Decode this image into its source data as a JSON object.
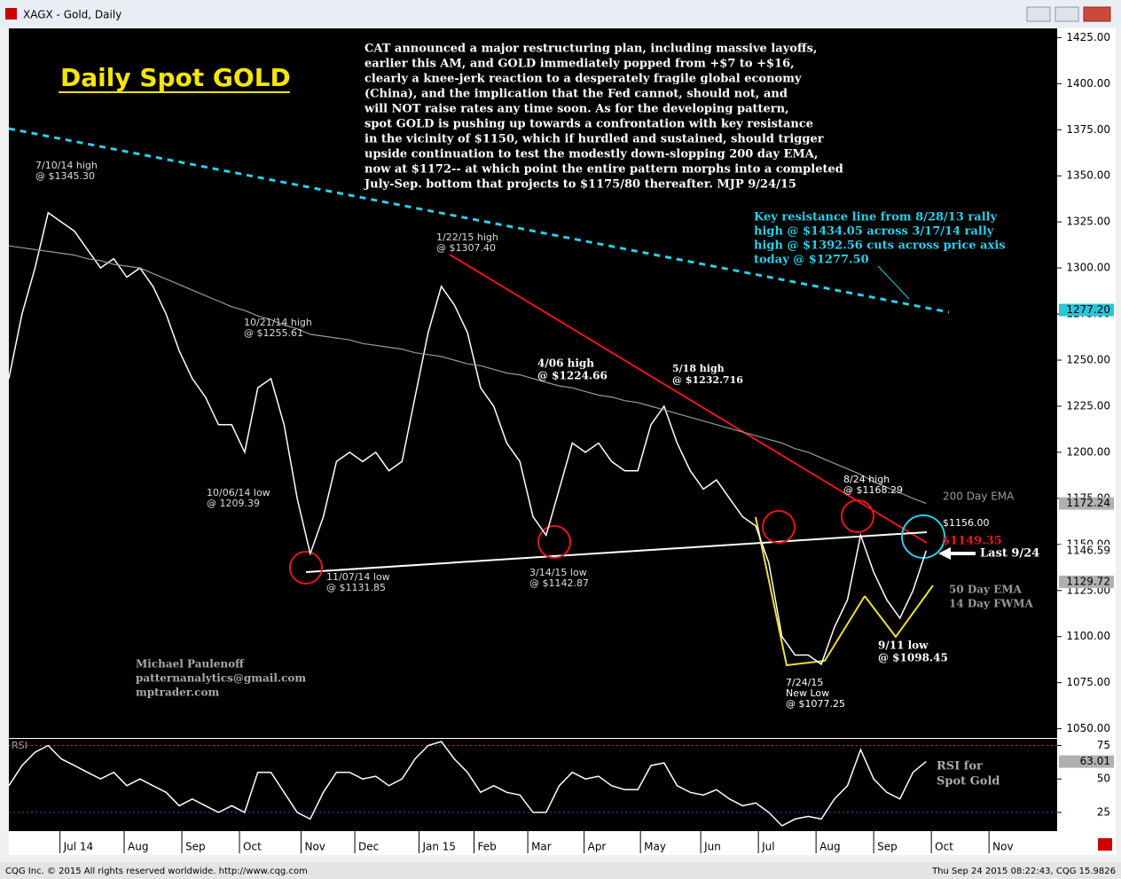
{
  "window": {
    "title": "XAGX - Gold, Daily"
  },
  "chart_data": [
    {
      "type": "line",
      "title": "Daily Spot GOLD",
      "x": [
        0,
        1,
        2,
        3,
        4,
        5,
        6,
        7,
        8,
        9,
        10,
        11,
        12,
        13,
        14,
        15,
        16,
        17,
        18,
        19,
        20,
        21,
        22,
        23,
        24,
        25,
        26,
        27,
        28,
        29,
        30,
        31,
        32,
        33,
        34,
        35,
        36,
        37,
        38,
        39,
        40,
        41,
        42,
        43,
        44,
        45,
        46,
        47,
        48,
        49,
        50,
        51,
        52,
        53,
        54,
        55,
        56,
        57,
        58,
        59,
        60,
        61,
        62,
        63,
        64,
        65,
        66,
        67,
        68,
        69,
        70
      ],
      "xlim": [
        0,
        80
      ],
      "series": [
        {
          "color": "#ffffff",
          "values": [
            1240,
            1275,
            1300,
            1330,
            1325,
            1320,
            1310,
            1300,
            1305,
            1295,
            1300,
            1290,
            1275,
            1255,
            1240,
            1230,
            1215,
            1215,
            1200,
            1235,
            1240,
            1215,
            1175,
            1145,
            1165,
            1195,
            1200,
            1195,
            1200,
            1190,
            1195,
            1230,
            1265,
            1290,
            1280,
            1265,
            1235,
            1225,
            1205,
            1195,
            1165,
            1155,
            1180,
            1205,
            1200,
            1205,
            1195,
            1190,
            1190,
            1215,
            1225,
            1205,
            1190,
            1180,
            1185,
            1175,
            1165,
            1160,
            1140,
            1100,
            1090,
            1090,
            1085,
            1105,
            1120,
            1155,
            1135,
            1120,
            1110,
            1125,
            1146.59
          ]
        },
        {
          "name": "200 Day EMA",
          "color": "#9a9a9a",
          "values": [
            1312,
            1311,
            1310,
            1309,
            1308,
            1307,
            1305,
            1304,
            1302,
            1301,
            1300,
            1297,
            1294,
            1291,
            1288,
            1285,
            1282,
            1279,
            1277,
            1274,
            1272,
            1269,
            1267,
            1264,
            1263,
            1262,
            1261,
            1259,
            1258,
            1257,
            1256,
            1254,
            1253,
            1252,
            1250,
            1248,
            1247,
            1245,
            1243,
            1242,
            1240,
            1238,
            1236,
            1235,
            1233,
            1231,
            1230,
            1228,
            1227,
            1225,
            1223,
            1221,
            1219,
            1217,
            1215,
            1213,
            1211,
            1209,
            1207,
            1205,
            1202,
            1200,
            1197,
            1194,
            1191,
            1188,
            1184,
            1181,
            1178,
            1175,
            1172.24
          ]
        }
      ],
      "ylim": [
        1045,
        1430
      ],
      "yticks": [
        {
          "value": 1050,
          "label": "1050.00"
        },
        {
          "value": 1075,
          "label": "1075.00"
        },
        {
          "value": 1100,
          "label": "1100.00"
        },
        {
          "value": 1125,
          "label": "1125.00"
        },
        {
          "value": 1150,
          "label": "1150.00"
        },
        {
          "value": 1175,
          "label": "1175.00"
        },
        {
          "value": 1200,
          "label": "1200.00"
        },
        {
          "value": 1225,
          "label": "1225.00"
        },
        {
          "value": 1250,
          "label": "1250.00"
        },
        {
          "value": 1275,
          "label": "1275.00"
        },
        {
          "value": 1300,
          "label": "1300.00"
        },
        {
          "value": 1325,
          "label": "1325.00"
        },
        {
          "value": 1350,
          "label": "1350.00"
        },
        {
          "value": 1375,
          "label": "1375.00"
        },
        {
          "value": 1400,
          "label": "1400.00"
        },
        {
          "value": 1425,
          "label": "1425.00"
        }
      ],
      "axis_markers": [
        {
          "value": 1277.2,
          "label": "1277.20",
          "color": "#29c5d8"
        },
        {
          "value": 1172.24,
          "label": "1172.24",
          "color": "#b0b0b0"
        },
        {
          "value": 1146.59,
          "label": "1146.59",
          "color": "#ffffff"
        },
        {
          "value": 1129.72,
          "label": "1129.72",
          "color": "#b0b0b0"
        }
      ],
      "annotations": [
        {
          "lines": [
            "CAT announced a major restructuring plan, including massive layoffs,",
            "earlier this AM, and GOLD immediately popped from +$7 to +$16,",
            "clearly a knee-jerk reaction to a desperately fragile global economy",
            "(China), and the implication that the Fed cannot, should not, and",
            "will NOT raise rates any time soon. As for the developing pattern,",
            "spot GOLD is pushing up towards a confrontation with key resistance",
            "in the vicinity of $1150, which if hurdled and sustained, should trigger",
            "upside continuation to test the modestly down-slopping 200 day EMA,",
            "now at $1172-- at which point the entire pattern morphs into a completed",
            "July-Sep. bottom that projects to $1175/80 thereafter.  MJP  9/24/15"
          ]
        },
        {
          "lines": [
            "Key resistance line from 8/28/13 rally",
            "high @ $1434.05 across 3/17/14 rally",
            "high @ $1392.56 cuts across price axis",
            "today @ $1277.50"
          ]
        },
        {
          "lines": [
            "7/10/14 high",
            "@ $1345.30"
          ]
        },
        {
          "lines": [
            "10/21/14 high",
            "@ $1255.61"
          ]
        },
        {
          "lines": [
            "10/06/14 low",
            "@ 1209.39"
          ]
        },
        {
          "lines": [
            "11/07/14 low",
            "@ $1131.85"
          ]
        },
        {
          "lines": [
            "1/22/15 high",
            "@ $1307.40"
          ]
        },
        {
          "lines": [
            "3/14/15 low",
            "@ $1142.87"
          ]
        },
        {
          "lines": [
            "4/06 high",
            "@ $1224.66"
          ]
        },
        {
          "lines": [
            "5/18 high",
            "@ $1232.716"
          ]
        },
        {
          "lines": [
            "8/24 high",
            "@ $1168.29"
          ]
        },
        {
          "lines": [
            "7/24/15",
            "New Low",
            "@ $1077.25"
          ]
        },
        {
          "lines": [
            "9/11 low",
            "@ $1098.45"
          ]
        },
        {
          "lines": [
            "$1156.00"
          ]
        },
        {
          "lines": [
            "$1149.35"
          ]
        },
        {
          "lines": [
            "Last 9/24"
          ]
        },
        {
          "lines": [
            "200 Day EMA"
          ]
        },
        {
          "lines": [
            "50 Day EMA",
            "14 Day FWMA"
          ]
        },
        {
          "lines": [
            "Michael Paulenoff",
            "patternanalytics@gmail.com",
            "mptrader.com"
          ]
        }
      ]
    },
    {
      "type": "line",
      "title": "RSI",
      "x": [
        0,
        1,
        2,
        3,
        4,
        5,
        6,
        7,
        8,
        9,
        10,
        11,
        12,
        13,
        14,
        15,
        16,
        17,
        18,
        19,
        20,
        21,
        22,
        23,
        24,
        25,
        26,
        27,
        28,
        29,
        30,
        31,
        32,
        33,
        34,
        35,
        36,
        37,
        38,
        39,
        40,
        41,
        42,
        43,
        44,
        45,
        46,
        47,
        48,
        49,
        50,
        51,
        52,
        53,
        54,
        55,
        56,
        57,
        58,
        59,
        60,
        61,
        62,
        63,
        64,
        65,
        66,
        67,
        68,
        69,
        70
      ],
      "xlim": [
        0,
        80
      ],
      "xticks": [
        {
          "value": 3.9,
          "label": "Jul 14"
        },
        {
          "value": 8.8,
          "label": "Aug"
        },
        {
          "value": 13.2,
          "label": "Sep"
        },
        {
          "value": 17.6,
          "label": "Oct"
        },
        {
          "value": 22.3,
          "label": "Nov"
        },
        {
          "value": 26.4,
          "label": "Dec"
        },
        {
          "value": 31.3,
          "label": "Jan 15"
        },
        {
          "value": 35.5,
          "label": "Feb"
        },
        {
          "value": 39.6,
          "label": "Mar"
        },
        {
          "value": 43.9,
          "label": "Apr"
        },
        {
          "value": 48.2,
          "label": "May"
        },
        {
          "value": 52.8,
          "label": "Jun"
        },
        {
          "value": 57.2,
          "label": "Jul"
        },
        {
          "value": 61.6,
          "label": "Aug"
        },
        {
          "value": 66.0,
          "label": "Sep"
        },
        {
          "value": 70.4,
          "label": "Oct"
        },
        {
          "value": 74.8,
          "label": "Nov"
        }
      ],
      "series": [
        {
          "color": "#ffffff",
          "values": [
            45,
            60,
            70,
            75,
            65,
            60,
            55,
            50,
            55,
            45,
            50,
            45,
            40,
            30,
            35,
            30,
            25,
            30,
            25,
            55,
            55,
            40,
            25,
            20,
            40,
            55,
            55,
            50,
            52,
            45,
            50,
            65,
            75,
            78,
            65,
            55,
            40,
            45,
            40,
            38,
            25,
            25,
            45,
            55,
            50,
            52,
            45,
            42,
            42,
            60,
            62,
            45,
            40,
            38,
            42,
            35,
            30,
            32,
            25,
            15,
            20,
            22,
            20,
            35,
            45,
            72,
            50,
            40,
            35,
            55,
            63.01
          ]
        }
      ],
      "ylim": [
        11,
        80
      ],
      "yticks": [
        25,
        50,
        75
      ],
      "axis_markers": [
        {
          "value": 63.01,
          "label": "63.01",
          "color": "#b0b0b0"
        }
      ],
      "annotations": [
        {
          "lines": [
            "RSI for",
            "Spot Gold"
          ]
        }
      ]
    }
  ],
  "footer": {
    "left": "CQG Inc. © 2015 All rights reserved worldwide. http://www.cqg.com",
    "right": "Thu Sep 24 2015 08:22:43, CQG 15.9826"
  }
}
